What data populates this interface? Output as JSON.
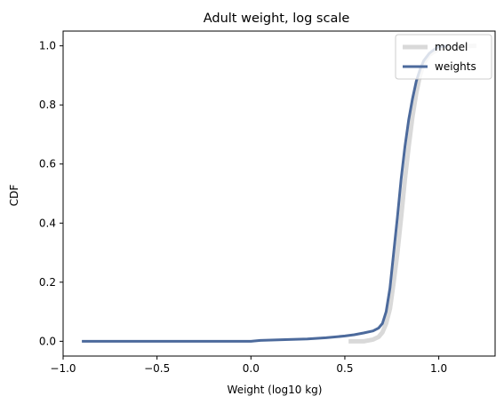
{
  "chart_data": {
    "type": "line",
    "title": "Adult weight, log scale",
    "xlabel": "Weight (log10 kg)",
    "ylabel": "CDF",
    "xlim": [
      -1.0,
      1.3
    ],
    "ylim": [
      -0.05,
      1.05
    ],
    "xticks": [
      -1.0,
      -0.5,
      0.0,
      0.5,
      1.0
    ],
    "xtick_labels": [
      "−1.0",
      "−0.5",
      "0.0",
      "0.5",
      "1.0"
    ],
    "yticks": [
      0.0,
      0.2,
      0.4,
      0.6,
      0.8,
      1.0
    ],
    "ytick_labels": [
      "0.0",
      "0.2",
      "0.4",
      "0.6",
      "0.8",
      "1.0"
    ],
    "grid": false,
    "legend_position": "top-right",
    "series": [
      {
        "name": "model",
        "color": "#d9d9d9",
        "x": [
          0.52,
          0.6,
          0.65,
          0.68,
          0.7,
          0.72,
          0.74,
          0.76,
          0.78,
          0.8,
          0.82,
          0.84,
          0.86,
          0.88,
          0.9,
          0.92,
          0.95,
          1.0,
          1.05,
          1.1,
          1.2
        ],
        "y": [
          0.0,
          0.0,
          0.006,
          0.015,
          0.03,
          0.06,
          0.11,
          0.2,
          0.3,
          0.42,
          0.55,
          0.66,
          0.76,
          0.84,
          0.9,
          0.94,
          0.97,
          0.99,
          0.997,
          0.999,
          1.0
        ]
      },
      {
        "name": "weights",
        "color": "#4c6a9c",
        "x": [
          -0.9,
          -0.5,
          0.0,
          0.05,
          0.2,
          0.3,
          0.4,
          0.5,
          0.55,
          0.6,
          0.65,
          0.68,
          0.7,
          0.72,
          0.74,
          0.76,
          0.78,
          0.8,
          0.82,
          0.84,
          0.86,
          0.88,
          0.9,
          0.92,
          0.95,
          0.98,
          1.0,
          1.05
        ],
        "y": [
          0.0,
          0.0,
          0.0,
          0.003,
          0.006,
          0.008,
          0.012,
          0.018,
          0.022,
          0.028,
          0.035,
          0.045,
          0.06,
          0.1,
          0.18,
          0.3,
          0.42,
          0.55,
          0.66,
          0.75,
          0.82,
          0.88,
          0.92,
          0.95,
          0.975,
          0.99,
          0.997,
          1.0
        ]
      }
    ]
  }
}
